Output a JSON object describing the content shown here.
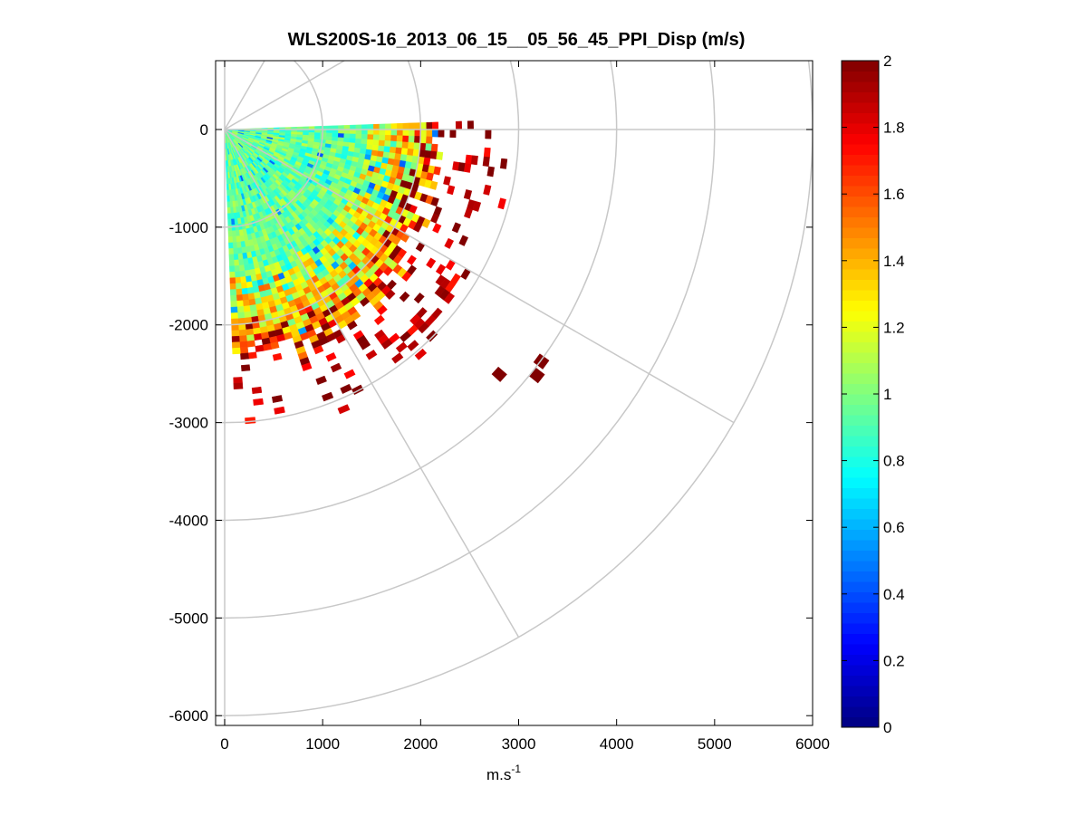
{
  "chart_data": {
    "type": "heatmap",
    "subtype": "polar-ppi-scan",
    "title": "WLS200S-16_2013_06_15__05_56_45_PPI_Disp (m/s)",
    "xlabel": "m.s",
    "xlabel_superscript": "-1",
    "ylabel": "",
    "xlim": [
      0,
      6000
    ],
    "ylim": [
      -6100,
      700
    ],
    "xticks": [
      0,
      1000,
      2000,
      3000,
      4000,
      5000,
      6000
    ],
    "xtick_labels": [
      "0",
      "1000",
      "2000",
      "3000",
      "4000",
      "5000",
      "6000"
    ],
    "yticks": [
      0,
      -1000,
      -2000,
      -3000,
      -4000,
      -5000,
      -6000
    ],
    "ytick_labels": [
      "0",
      "-1000",
      "-2000",
      "-3000",
      "-4000",
      "-5000",
      "-6000"
    ],
    "grid": "polar",
    "polar_grid": {
      "ring_radii": [
        1000,
        2000,
        3000,
        4000,
        5000,
        6000
      ],
      "spoke_angles_deg": [
        0,
        -30,
        -60,
        30,
        60
      ]
    },
    "scan": {
      "azimuth_from_deg": 2,
      "azimuth_to_deg": -88,
      "range_gate_m": 60,
      "typical_max_range_m": 2300,
      "typical_value_m_s": 0.95,
      "note_structure": "values near 0.8-1.0 at short range, rising to 1.2-2.0 beyond about 1800 m"
    },
    "colorbar": {
      "colormap": "jet",
      "min": 0,
      "max": 2,
      "ticks": [
        0,
        0.2,
        0.4,
        0.6,
        0.8,
        1,
        1.2,
        1.4,
        1.6,
        1.8,
        2
      ],
      "tick_labels": [
        "0",
        "0.2",
        "0.4",
        "0.6",
        "0.8",
        "1",
        "1.2",
        "1.4",
        "1.6",
        "1.8",
        "2"
      ],
      "location": "right"
    },
    "colors": {
      "grid": "#c8c8c8",
      "axes": "#000000",
      "background": "#ffffff"
    }
  }
}
